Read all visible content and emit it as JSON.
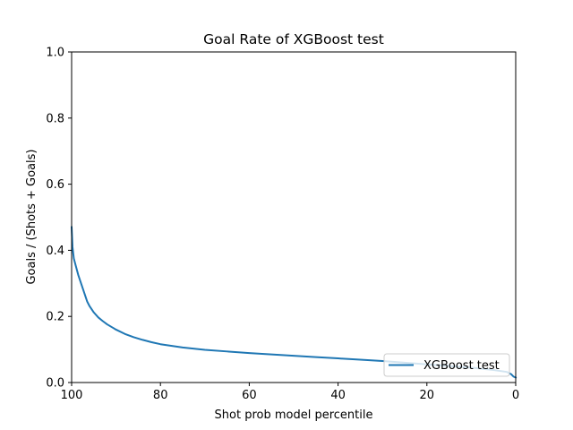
{
  "chart_data": {
    "type": "line",
    "title": "Goal Rate of XGBoost test",
    "xlabel": "Shot prob model percentile",
    "ylabel": "Goals / (Shots + Goals)",
    "xlim": [
      100,
      0
    ],
    "ylim": [
      0.0,
      1.0
    ],
    "x_ticks": [
      "100",
      "80",
      "60",
      "40",
      "20",
      "0"
    ],
    "y_ticks": [
      "0.0",
      "0.2",
      "0.4",
      "0.6",
      "0.8",
      "1.0"
    ],
    "grid": false,
    "legend_position": "lower-right",
    "series": [
      {
        "name": "XGBoost test",
        "color": "#1f77b4",
        "x": [
          100,
          99.8,
          99.5,
          99,
          98.5,
          98,
          97.5,
          97,
          96.5,
          96,
          95,
          94,
          93,
          92,
          90,
          88,
          86,
          84,
          82,
          80,
          75,
          70,
          65,
          60,
          55,
          50,
          45,
          40,
          35,
          30,
          25,
          20,
          15,
          10,
          5,
          2,
          1,
          0.5,
          0
        ],
        "y": [
          0.47,
          0.41,
          0.375,
          0.35,
          0.325,
          0.305,
          0.285,
          0.265,
          0.245,
          0.232,
          0.212,
          0.197,
          0.186,
          0.176,
          0.16,
          0.147,
          0.137,
          0.129,
          0.122,
          0.116,
          0.106,
          0.099,
          0.094,
          0.089,
          0.085,
          0.081,
          0.077,
          0.073,
          0.069,
          0.065,
          0.06,
          0.055,
          0.05,
          0.045,
          0.038,
          0.032,
          0.025,
          0.018,
          0.015
        ]
      }
    ]
  }
}
